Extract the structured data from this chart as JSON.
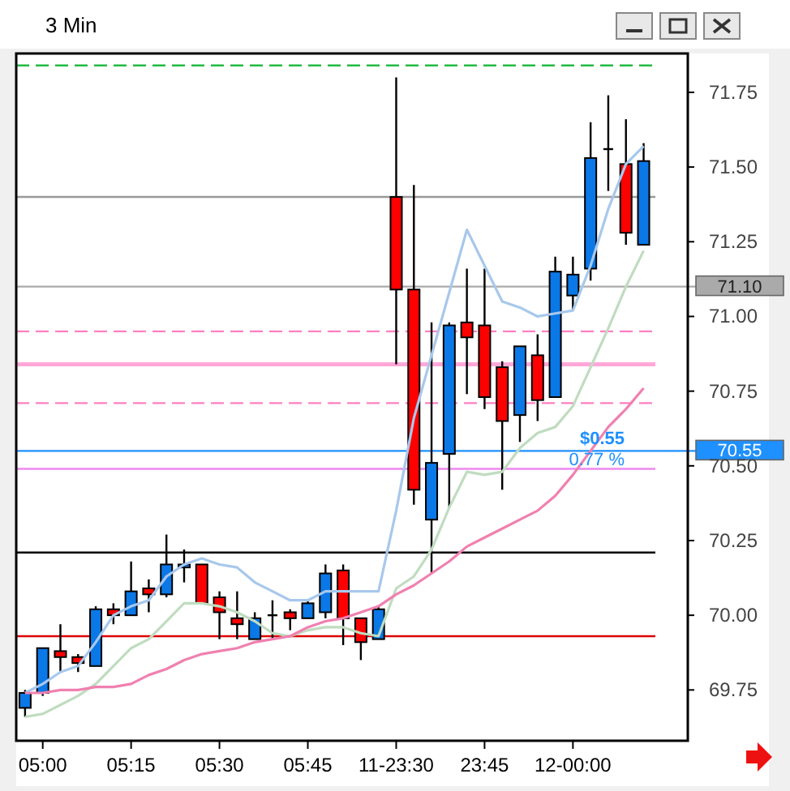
{
  "chart_data": {
    "type": "candlestick",
    "title": "3 Min",
    "categories": [
      null,
      "05:00",
      null,
      null,
      null,
      null,
      "05:15",
      null,
      null,
      null,
      null,
      "05:30",
      null,
      null,
      null,
      null,
      "05:45",
      null,
      null,
      null,
      null,
      "11-23:30",
      null,
      null,
      null,
      null,
      "23:45",
      null,
      null,
      null,
      null,
      "12-00:00",
      null,
      null,
      null,
      null,
      null,
      null
    ],
    "ohlc": [
      [
        69.69,
        69.75,
        69.66,
        69.74
      ],
      [
        69.74,
        69.89,
        69.73,
        69.89
      ],
      [
        69.88,
        69.97,
        69.81,
        69.86
      ],
      [
        69.86,
        69.87,
        69.81,
        69.84
      ],
      [
        69.83,
        70.03,
        69.83,
        70.02
      ],
      [
        70.02,
        70.04,
        69.97,
        70.0
      ],
      [
        70.0,
        70.18,
        70.0,
        70.08
      ],
      [
        70.09,
        70.12,
        70.01,
        70.07
      ],
      [
        70.07,
        70.27,
        70.06,
        70.17
      ],
      [
        70.16,
        70.22,
        70.11,
        70.17
      ],
      [
        70.17,
        70.17,
        70.04,
        70.04
      ],
      [
        70.06,
        70.08,
        69.92,
        70.01
      ],
      [
        69.99,
        70.08,
        69.92,
        69.97
      ],
      [
        69.92,
        70.01,
        69.92,
        69.99
      ],
      [
        70.0,
        70.05,
        69.92,
        70.0
      ],
      [
        70.01,
        70.02,
        69.95,
        69.99
      ],
      [
        69.99,
        70.05,
        69.99,
        70.04
      ],
      [
        70.01,
        70.17,
        69.99,
        70.14
      ],
      [
        70.15,
        70.17,
        69.9,
        69.99
      ],
      [
        69.99,
        69.99,
        69.85,
        69.91
      ],
      [
        69.92,
        70.03,
        69.92,
        70.02
      ],
      [
        71.4,
        71.8,
        70.84,
        71.09
      ],
      [
        71.09,
        71.44,
        70.37,
        70.42
      ],
      [
        70.32,
        70.98,
        70.14,
        70.51
      ],
      [
        70.54,
        70.98,
        70.36,
        70.97
      ],
      [
        70.98,
        71.16,
        70.74,
        70.93
      ],
      [
        70.97,
        71.16,
        70.69,
        70.73
      ],
      [
        70.83,
        70.85,
        70.42,
        70.65
      ],
      [
        70.67,
        70.9,
        70.58,
        70.9
      ],
      [
        70.87,
        70.94,
        70.65,
        70.72
      ],
      [
        70.73,
        71.2,
        70.73,
        71.15
      ],
      [
        71.07,
        71.2,
        71.02,
        71.14
      ],
      [
        71.16,
        71.65,
        71.12,
        71.53
      ],
      [
        71.56,
        71.74,
        71.42,
        71.56
      ],
      [
        71.51,
        71.66,
        71.24,
        71.28
      ],
      [
        71.24,
        71.58,
        71.24,
        71.52
      ],
      null,
      null
    ],
    "colors": [
      "#0a78e6",
      "#0a78e6",
      "#ff0000",
      "#ff0000",
      "#0a78e6",
      "#ff0000",
      "#0a78e6",
      "#ff0000",
      "#0a78e6",
      "#0a78e6",
      "#ff0000",
      "#ff0000",
      "#ff0000",
      "#0a78e6",
      "#000000",
      "#ff0000",
      "#0a78e6",
      "#0a78e6",
      "#ff0000",
      "#ff0000",
      "#0a78e6",
      "#ff0000",
      "#ff0000",
      "#0a78e6",
      "#0a78e6",
      "#ff0000",
      "#ff0000",
      "#ff0000",
      "#0a78e6",
      "#ff0000",
      "#0a78e6",
      "#0a78e6",
      "#0a78e6",
      "#000000",
      "#ff0000",
      "#0a78e6",
      null,
      null
    ],
    "series": [
      {
        "type": "line",
        "color": "#a8c8ec",
        "values": [
          69.74,
          69.77,
          69.81,
          69.83,
          69.91,
          70.0,
          70.03,
          70.05,
          70.13,
          70.17,
          70.19,
          70.17,
          70.16,
          70.11,
          70.08,
          70.05,
          70.05,
          70.08,
          70.08,
          70.08,
          70.08,
          70.35,
          70.66,
          70.87,
          71.08,
          71.29,
          71.17,
          71.05,
          71.03,
          71.0,
          71.01,
          71.02,
          71.17,
          71.36,
          71.51,
          71.57,
          null,
          null
        ]
      },
      {
        "type": "line",
        "color": "#c0dcc0",
        "values": [
          69.66,
          69.67,
          69.7,
          69.73,
          69.77,
          69.83,
          69.89,
          69.92,
          69.98,
          70.04,
          70.04,
          70.03,
          70.01,
          69.98,
          69.94,
          69.93,
          69.95,
          69.96,
          69.96,
          69.94,
          69.93,
          70.09,
          70.13,
          70.22,
          70.36,
          70.48,
          70.47,
          70.48,
          70.56,
          70.61,
          70.63,
          70.7,
          70.83,
          70.96,
          71.1,
          71.22,
          null,
          null
        ]
      },
      {
        "type": "line",
        "color": "#f080b0",
        "values": [
          69.74,
          69.74,
          69.75,
          69.75,
          69.76,
          69.76,
          69.77,
          69.8,
          69.82,
          69.85,
          69.87,
          69.88,
          69.89,
          69.91,
          69.92,
          69.93,
          69.96,
          69.98,
          69.99,
          70.01,
          70.03,
          70.07,
          70.1,
          70.14,
          70.18,
          70.23,
          70.26,
          70.29,
          70.32,
          70.35,
          70.4,
          70.47,
          70.55,
          70.63,
          70.69,
          70.76,
          null,
          null
        ]
      }
    ],
    "ylim": [
      69.58,
      71.88
    ],
    "yticks": [
      69.75,
      {
        "value": 70,
        "label": "70.00"
      },
      70.25,
      {
        "value": 70.5,
        "label": "70.50"
      },
      70.75,
      {
        "value": 71,
        "label": "71.00"
      },
      71.25,
      {
        "value": 71.5,
        "label": "71.50"
      },
      71.75
    ],
    "grid": false,
    "ref_lines": [
      {
        "axis": "y",
        "value": 71.84,
        "color": "#22bb44",
        "line_style": "dashed"
      },
      {
        "axis": "y",
        "value": 71.4,
        "color": "#999999"
      },
      {
        "axis": "y",
        "value": 71.1,
        "label": "71.10",
        "color": "#aaaaaa"
      },
      {
        "axis": "y",
        "value": 70.95,
        "color": "#ff80c0",
        "line_style": "dashed"
      },
      {
        "axis": "y",
        "value": 70.84,
        "color": "#ffa8d8"
      },
      {
        "axis": "y",
        "value": 70.71,
        "color": "#ff80c0",
        "line_style": "dashed"
      },
      {
        "axis": "y",
        "value": 70.55,
        "label": "70.55",
        "color": "#1e90ff"
      },
      {
        "axis": "y",
        "value": 70.49,
        "color": "#ee88ee"
      },
      {
        "axis": "y",
        "value": 70.21,
        "color": "#000000"
      },
      {
        "axis": "y",
        "value": 69.93,
        "color": "#dd0000"
      }
    ],
    "annotations": [
      "$0.55",
      "0.77 %"
    ]
  }
}
